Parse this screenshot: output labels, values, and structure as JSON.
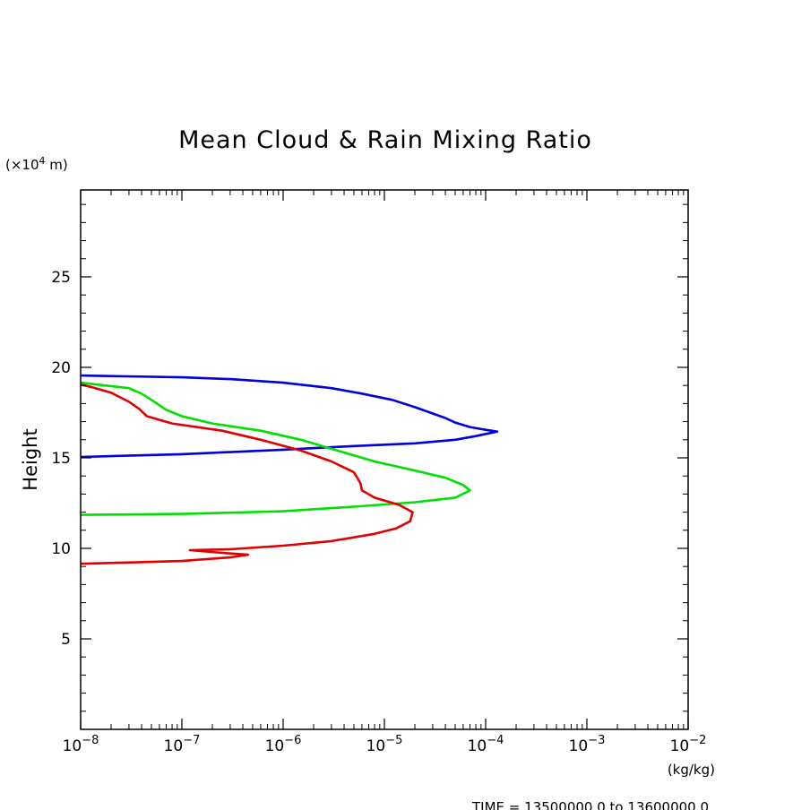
{
  "chart_data": {
    "type": "line",
    "title": "Mean Cloud & Rain Mixing Ratio",
    "xlabel": "",
    "ylabel": "Height",
    "x_unit": "(kg/kg)",
    "y_unit_prefix": "(×10",
    "y_unit_exp": "4",
    "y_unit_suffix": " m)",
    "x_scale": "log",
    "xlim": [
      1e-08,
      0.01
    ],
    "ylim": [
      0,
      29.8
    ],
    "x_ticks": [
      {
        "value": 1e-08,
        "base": "10",
        "exp": "−8"
      },
      {
        "value": 1e-07,
        "base": "10",
        "exp": "−7"
      },
      {
        "value": 1e-06,
        "base": "10",
        "exp": "−6"
      },
      {
        "value": 1e-05,
        "base": "10",
        "exp": "−5"
      },
      {
        "value": 0.0001,
        "base": "10",
        "exp": "−4"
      },
      {
        "value": 0.001,
        "base": "10",
        "exp": "−3"
      },
      {
        "value": 0.01,
        "base": "10",
        "exp": "−2"
      }
    ],
    "y_ticks": [
      {
        "value": 5,
        "label": "5"
      },
      {
        "value": 10,
        "label": "10"
      },
      {
        "value": 15,
        "label": "15"
      },
      {
        "value": 20,
        "label": "20"
      },
      {
        "value": 25,
        "label": "25"
      }
    ],
    "grid": false,
    "legend": "none",
    "footer": "TIME = 13500000.0 to 13600000.0",
    "series": [
      {
        "color": "#0000dd",
        "points": [
          [
            1e-08,
            15.05
          ],
          [
            1e-07,
            15.2
          ],
          [
            1e-06,
            15.45
          ],
          [
            5e-06,
            15.65
          ],
          [
            2e-05,
            15.8
          ],
          [
            5e-05,
            16.0
          ],
          [
            8e-05,
            16.2
          ],
          [
            0.00013,
            16.45
          ],
          [
            0.0001,
            16.55
          ],
          [
            7e-05,
            16.7
          ],
          [
            5e-05,
            16.95
          ],
          [
            4e-05,
            17.2
          ],
          [
            3e-05,
            17.45
          ],
          [
            2e-05,
            17.8
          ],
          [
            1.2e-05,
            18.2
          ],
          [
            6e-06,
            18.55
          ],
          [
            3e-06,
            18.85
          ],
          [
            1e-06,
            19.15
          ],
          [
            3e-07,
            19.35
          ],
          [
            1e-07,
            19.45
          ],
          [
            1e-08,
            19.55
          ]
        ]
      },
      {
        "color": "#00e000",
        "points": [
          [
            1e-08,
            11.85
          ],
          [
            1e-07,
            11.9
          ],
          [
            1e-06,
            12.05
          ],
          [
            5e-06,
            12.3
          ],
          [
            2e-05,
            12.55
          ],
          [
            5e-05,
            12.8
          ],
          [
            7e-05,
            13.2
          ],
          [
            6e-05,
            13.5
          ],
          [
            4e-05,
            13.9
          ],
          [
            2e-05,
            14.3
          ],
          [
            8e-06,
            14.8
          ],
          [
            3e-06,
            15.5
          ],
          [
            1.5e-06,
            16.0
          ],
          [
            6e-07,
            16.5
          ],
          [
            2e-07,
            16.9
          ],
          [
            1e-07,
            17.3
          ],
          [
            7e-08,
            17.65
          ],
          [
            5e-08,
            18.2
          ],
          [
            4e-08,
            18.55
          ],
          [
            3e-08,
            18.85
          ],
          [
            1e-08,
            19.15
          ]
        ]
      },
      {
        "color": "#e00000",
        "points": [
          [
            1e-08,
            9.15
          ],
          [
            5e-08,
            9.25
          ],
          [
            1e-07,
            9.3
          ],
          [
            3e-07,
            9.5
          ],
          [
            4.5e-07,
            9.65
          ],
          [
            2.5e-07,
            9.75
          ],
          [
            1.2e-07,
            9.9
          ],
          [
            3e-07,
            9.95
          ],
          [
            1e-06,
            10.15
          ],
          [
            3e-06,
            10.4
          ],
          [
            8e-06,
            10.8
          ],
          [
            1.3e-05,
            11.1
          ],
          [
            1.8e-05,
            11.5
          ],
          [
            1.9e-05,
            12.0
          ],
          [
            1.4e-05,
            12.4
          ],
          [
            8e-06,
            12.8
          ],
          [
            6e-06,
            13.2
          ],
          [
            5.8e-06,
            13.6
          ],
          [
            5e-06,
            14.2
          ],
          [
            3e-06,
            14.8
          ],
          [
            1.5e-06,
            15.4
          ],
          [
            6e-07,
            16.0
          ],
          [
            2.5e-07,
            16.5
          ],
          [
            8e-08,
            16.9
          ],
          [
            4.5e-08,
            17.3
          ],
          [
            3.8e-08,
            17.7
          ],
          [
            3e-08,
            18.1
          ],
          [
            2e-08,
            18.6
          ],
          [
            1.3e-08,
            18.9
          ],
          [
            1e-08,
            19.05
          ]
        ]
      }
    ]
  }
}
